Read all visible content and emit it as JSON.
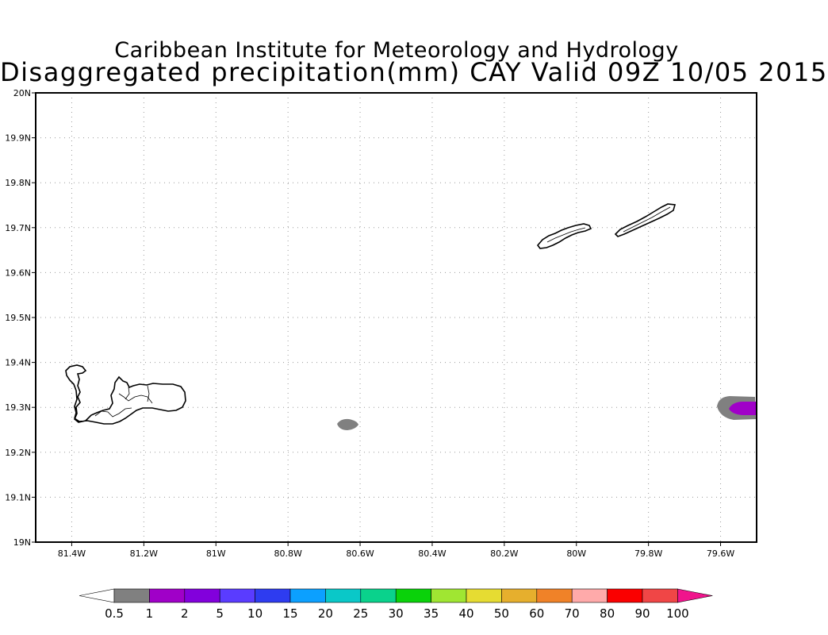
{
  "title_line1": "Caribbean Institute for Meteorology and Hydrology",
  "title_line2": "Disaggregated precipitation(mm) CAY Valid 09Z 10/05 2015",
  "map": {
    "lon_range": [
      -81.5,
      -79.5
    ],
    "lat_range": [
      19.0,
      20.0
    ],
    "x_ticks": [
      {
        "value": -81.4,
        "label": "81.4W"
      },
      {
        "value": -81.2,
        "label": "81.2W"
      },
      {
        "value": -81.0,
        "label": "81W"
      },
      {
        "value": -80.8,
        "label": "80.8W"
      },
      {
        "value": -80.6,
        "label": "80.6W"
      },
      {
        "value": -80.4,
        "label": "80.4W"
      },
      {
        "value": -80.2,
        "label": "80.2W"
      },
      {
        "value": -80.0,
        "label": "80W"
      },
      {
        "value": -79.8,
        "label": "79.8W"
      },
      {
        "value": -79.6,
        "label": "79.6W"
      }
    ],
    "y_ticks": [
      {
        "value": 19.0,
        "label": "19N"
      },
      {
        "value": 19.1,
        "label": "19.1N"
      },
      {
        "value": 19.2,
        "label": "19.2N"
      },
      {
        "value": 19.3,
        "label": "19.3N"
      },
      {
        "value": 19.4,
        "label": "19.4N"
      },
      {
        "value": 19.5,
        "label": "19.5N"
      },
      {
        "value": 19.6,
        "label": "19.6N"
      },
      {
        "value": 19.7,
        "label": "19.7N"
      },
      {
        "value": 19.8,
        "label": "19.8N"
      },
      {
        "value": 19.9,
        "label": "19.9N"
      },
      {
        "value": 20.0,
        "label": "20N"
      }
    ],
    "grid": "dotted"
  },
  "precipitation_areas": [
    {
      "name": "precip-area-central",
      "center": [
        -80.63,
        19.263
      ],
      "range_mm": "0.5-1",
      "color": "#808080"
    },
    {
      "name": "precip-area-east-outer",
      "center": [
        -79.54,
        19.3
      ],
      "range_mm": "0.5-1",
      "color": "#808080"
    },
    {
      "name": "precip-area-east-inner",
      "center": [
        -79.53,
        19.3
      ],
      "range_mm": "1-2",
      "color": "#a000c8"
    }
  ],
  "colorbar": {
    "labels": [
      "0.5",
      "1",
      "2",
      "5",
      "10",
      "15",
      "20",
      "25",
      "30",
      "35",
      "40",
      "50",
      "60",
      "70",
      "80",
      "90",
      "100"
    ],
    "under_color": "#ffffff",
    "over_color": "#f0148c",
    "colors": [
      "#808080",
      "#a000c8",
      "#8200dc",
      "#5a3cff",
      "#2e3cf0",
      "#0ca0ff",
      "#0ac8c8",
      "#0ad28c",
      "#0ad20a",
      "#a0e632",
      "#e6dc32",
      "#e6af2d",
      "#f08228",
      "#ffaaaa",
      "#fa0000",
      "#f04646"
    ]
  }
}
